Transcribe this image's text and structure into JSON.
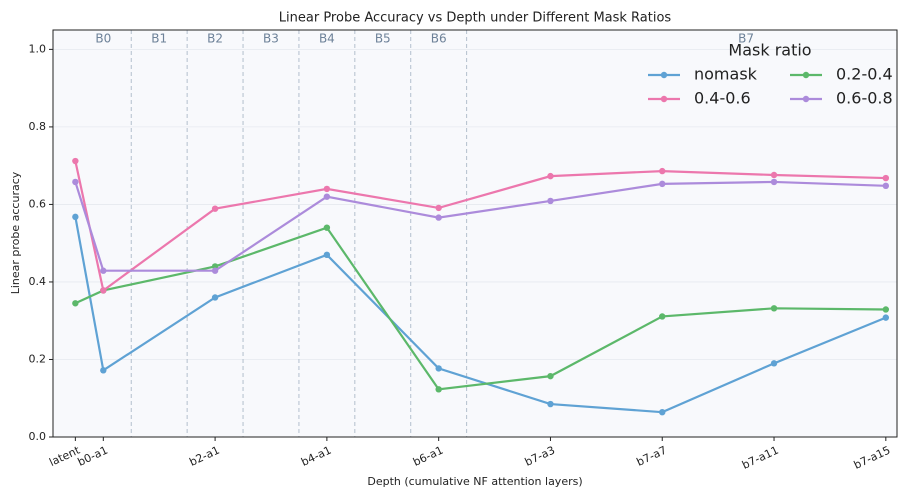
{
  "chart_data": {
    "type": "line",
    "title": "Linear Probe Accuracy vs Depth under Different Mask Ratios",
    "xlabel": "Depth (cumulative NF attention layers)",
    "ylabel": "Linear probe accuracy",
    "x": [
      0,
      1,
      5,
      9,
      13,
      17,
      21,
      25,
      29
    ],
    "xlim": [
      -0.8,
      29.4
    ],
    "xticks": [
      {
        "value": 0,
        "label": "latent"
      },
      {
        "value": 1,
        "label": "b0-a1"
      },
      {
        "value": 5,
        "label": "b2-a1"
      },
      {
        "value": 9,
        "label": "b4-a1"
      },
      {
        "value": 13,
        "label": "b6-a1"
      },
      {
        "value": 17,
        "label": "b7-a3"
      },
      {
        "value": 21,
        "label": "b7-a7"
      },
      {
        "value": 25,
        "label": "b7-a11"
      },
      {
        "value": 29,
        "label": "b7-a15"
      }
    ],
    "ylim": [
      0,
      1.05
    ],
    "yticks": [
      {
        "value": 0,
        "label": "0.0"
      },
      0.2,
      0.4,
      0.6,
      0.8,
      {
        "value": 1,
        "label": "1.0"
      }
    ],
    "grid": true,
    "blocks": [
      {
        "label": "B0",
        "start": 0,
        "end": 2
      },
      {
        "label": "B1",
        "start": 2,
        "end": 4
      },
      {
        "label": "B2",
        "start": 4,
        "end": 6
      },
      {
        "label": "B3",
        "start": 6,
        "end": 8
      },
      {
        "label": "B4",
        "start": 8,
        "end": 10
      },
      {
        "label": "B5",
        "start": 10,
        "end": 12
      },
      {
        "label": "B6",
        "start": 12,
        "end": 14
      },
      {
        "label": "B7",
        "start": 14,
        "end": 34
      }
    ],
    "legend_title": "Mask ratio",
    "legend_position": "upper right",
    "series": [
      {
        "name": "nomask",
        "color": "#5fa2d4",
        "values": [
          0.568,
          0.172,
          0.36,
          0.47,
          0.177,
          0.085,
          0.064,
          0.19,
          0.308
        ]
      },
      {
        "name": "0.2-0.4",
        "color": "#5cb86a",
        "values": [
          0.345,
          0.378,
          0.44,
          0.54,
          0.123,
          0.157,
          0.311,
          0.332,
          0.329
        ]
      },
      {
        "name": "0.4-0.6",
        "color": "#ec77ad",
        "values": [
          0.712,
          0.378,
          0.589,
          0.64,
          0.591,
          0.673,
          0.686,
          0.676,
          0.668
        ]
      },
      {
        "name": "0.6-0.8",
        "color": "#ac8bdb",
        "values": [
          0.658,
          0.429,
          0.429,
          0.62,
          0.566,
          0.609,
          0.653,
          0.658,
          0.648
        ]
      }
    ]
  }
}
